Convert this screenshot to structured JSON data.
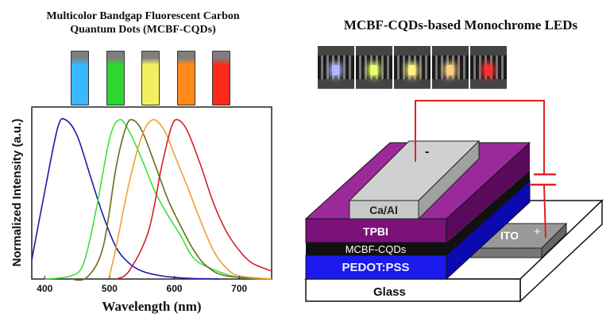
{
  "left_panel": {
    "title": "Multicolor Bandgap Fluorescent Carbon Quantum Dots (MCBF-CQDs)",
    "cuvette_colors": [
      "#3ab8ff",
      "#2ed82e",
      "#f2f060",
      "#ff8a1a",
      "#ff2a1a"
    ]
  },
  "right_panel": {
    "title": "MCBF-CQDs-based Monochrome LEDs",
    "led_photo_colors": [
      "#b0b8ff",
      "#e8ff70",
      "#fff080",
      "#ffd080",
      "#ff3030"
    ],
    "device": {
      "cathode": "Ca/Al",
      "cathode_sign": "-",
      "layers": [
        "TPBI",
        "MCBF-CQDs",
        "PEDOT:PSS",
        "Glass"
      ],
      "anode": "ITO",
      "anode_sign": "+",
      "colors": {
        "tpbi": "#8a1a8a",
        "mcbf": "#111111",
        "pedot": "#1a1aee",
        "glass": "#ffffff",
        "ito": "#888888",
        "cathode": "#c8c8c8",
        "wire": "#e02020"
      }
    }
  },
  "chart_data": {
    "type": "line",
    "xlabel": "Wavelength (nm)",
    "ylabel": "Normalized Intensity (a.u.)",
    "xlim": [
      380,
      750
    ],
    "ylim": [
      0,
      1.08
    ],
    "xticks": [
      400,
      500,
      600,
      700
    ],
    "yticks": [],
    "grid": false,
    "series": [
      {
        "color": "#1a1aa8",
        "x": [
          380,
          400,
          420,
          432,
          450,
          470,
          490,
          510,
          530,
          550,
          580,
          620,
          670
        ],
        "y": [
          0.12,
          0.55,
          0.95,
          1.0,
          0.9,
          0.65,
          0.4,
          0.2,
          0.1,
          0.05,
          0.02,
          0.005,
          0
        ]
      },
      {
        "color": "#3ee03e",
        "x": [
          400,
          440,
          460,
          480,
          500,
          515,
          530,
          550,
          570,
          590,
          610,
          630,
          660,
          700,
          750
        ],
        "y": [
          0,
          0.02,
          0.1,
          0.45,
          0.88,
          1.0,
          0.93,
          0.75,
          0.55,
          0.4,
          0.27,
          0.13,
          0.06,
          0.01,
          0
        ]
      },
      {
        "color": "#6b6b1a",
        "x": [
          440,
          465,
          490,
          510,
          525,
          535,
          550,
          570,
          590,
          610,
          630,
          650,
          680,
          750
        ],
        "y": [
          0,
          0.01,
          0.2,
          0.7,
          0.95,
          1.0,
          0.93,
          0.72,
          0.5,
          0.33,
          0.18,
          0.08,
          0.02,
          0
        ]
      },
      {
        "color": "#f0a030",
        "x": [
          500,
          510,
          530,
          550,
          567,
          585,
          600,
          620,
          640,
          660,
          680,
          700,
          750
        ],
        "y": [
          0.02,
          0.2,
          0.6,
          0.9,
          1.0,
          0.93,
          0.78,
          0.58,
          0.37,
          0.18,
          0.07,
          0.02,
          0
        ]
      },
      {
        "color": "#d42030",
        "x": [
          510,
          530,
          560,
          580,
          595,
          605,
          620,
          640,
          660,
          680,
          700,
          720,
          750
        ],
        "y": [
          0,
          0.05,
          0.3,
          0.7,
          0.95,
          1.0,
          0.93,
          0.72,
          0.48,
          0.3,
          0.18,
          0.1,
          0.05
        ]
      }
    ]
  }
}
